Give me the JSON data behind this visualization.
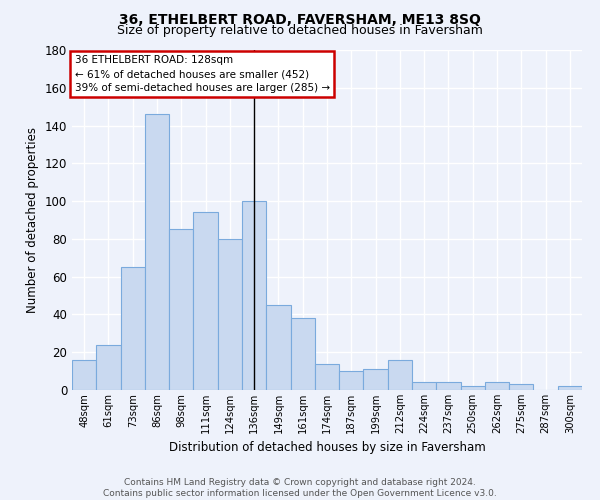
{
  "title": "36, ETHELBERT ROAD, FAVERSHAM, ME13 8SQ",
  "subtitle": "Size of property relative to detached houses in Faversham",
  "xlabel": "Distribution of detached houses by size in Faversham",
  "ylabel": "Number of detached properties",
  "categories": [
    "48sqm",
    "61sqm",
    "73sqm",
    "86sqm",
    "98sqm",
    "111sqm",
    "124sqm",
    "136sqm",
    "149sqm",
    "161sqm",
    "174sqm",
    "187sqm",
    "199sqm",
    "212sqm",
    "224sqm",
    "237sqm",
    "250sqm",
    "262sqm",
    "275sqm",
    "287sqm",
    "300sqm"
  ],
  "values": [
    16,
    24,
    65,
    146,
    85,
    94,
    80,
    100,
    45,
    38,
    14,
    10,
    11,
    16,
    4,
    4,
    2,
    4,
    3,
    0,
    2
  ],
  "bar_color": "#c9d9f0",
  "bar_edge_color": "#7aaadd",
  "highlight_index": 7,
  "highlight_line_color": "#000000",
  "ylim": [
    0,
    180
  ],
  "yticks": [
    0,
    20,
    40,
    60,
    80,
    100,
    120,
    140,
    160,
    180
  ],
  "annotation_line1": "36 ETHELBERT ROAD: 128sqm",
  "annotation_line2": "← 61% of detached houses are smaller (452)",
  "annotation_line3": "39% of semi-detached houses are larger (285) →",
  "annotation_box_color": "#ffffff",
  "annotation_box_edge": "#cc0000",
  "footer": "Contains HM Land Registry data © Crown copyright and database right 2024.\nContains public sector information licensed under the Open Government Licence v3.0.",
  "background_color": "#eef2fb",
  "grid_color": "#ffffff"
}
